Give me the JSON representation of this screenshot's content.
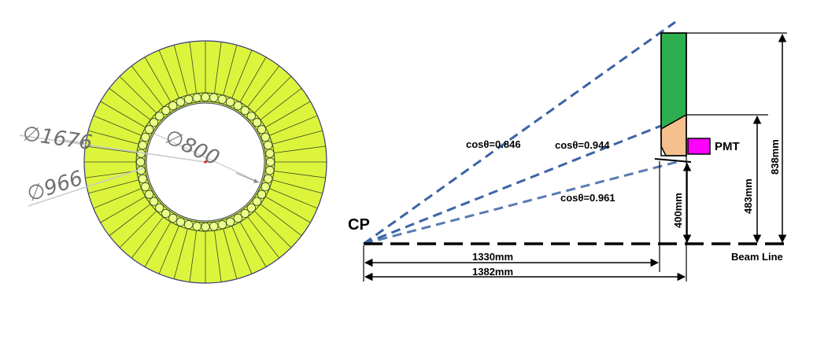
{
  "left_view": {
    "diameters": {
      "outer": "∅1676",
      "inner_ring": "∅966",
      "bore": "∅800"
    },
    "colors": {
      "sector_fill": "#dcf53c",
      "sector_line": "#3a4a2a",
      "outline": "#3a3a7a",
      "pmt_circle_fill": "#eaff8a"
    },
    "sector_count": 48,
    "pmt_count": 48
  },
  "right_view": {
    "cp_label": "CP",
    "beam_line_label": "Beam Line",
    "pmt_label": "PMT",
    "cos_labels": {
      "outer": "cosθ=0.846",
      "middle": "cosθ=0.944",
      "inner": "cosθ=0.961"
    },
    "dimensions": {
      "d1330": "1330mm",
      "d1382": "1382mm",
      "d400": "400mm",
      "d483": "483mm",
      "d838": "838mm"
    },
    "colors": {
      "radiator_green": "#2eaf4f",
      "radiator_orange": "#f5c08e",
      "pmt_magenta": "#ff00ff",
      "ray_blue": "#3b64a4"
    }
  }
}
